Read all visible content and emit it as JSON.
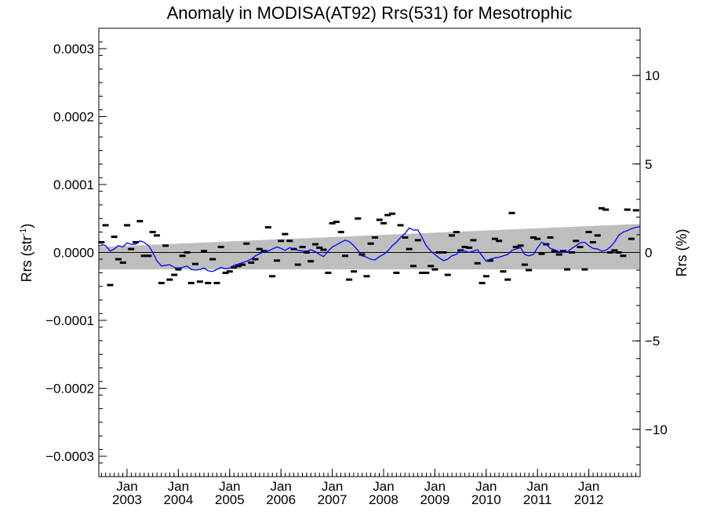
{
  "chart_data": {
    "type": "line",
    "title": "Anomaly in MODISA(AT92) Rrs(531) for Mesotrophic",
    "ylabel": "Rrs (str",
    "ylabel_sup": "-1",
    "ylabel_close": ")",
    "y2label": "Rrs (%)",
    "xlim": [
      2002.45,
      2013.0
    ],
    "ylim": [
      -0.00033,
      0.00033
    ],
    "y2lim": [
      -12.67,
      12.67
    ],
    "grid": false,
    "y_ticks": [
      {
        "value": 0.0003,
        "label": "0.0003"
      },
      {
        "value": 0.0002,
        "label": "0.0002"
      },
      {
        "value": 0.0001,
        "label": "0.0001"
      },
      {
        "value": 0.0,
        "label": "0.0000"
      },
      {
        "value": -0.0001,
        "label": "−0.0001"
      },
      {
        "value": -0.0002,
        "label": "−0.0002"
      },
      {
        "value": -0.0003,
        "label": "−0.0003"
      }
    ],
    "y2_ticks": [
      {
        "value": 10,
        "label": "10"
      },
      {
        "value": 5,
        "label": "5"
      },
      {
        "value": 0,
        "label": "0"
      },
      {
        "value": -5,
        "label": "−5"
      },
      {
        "value": -10,
        "label": "−10"
      }
    ],
    "x_ticks": [
      {
        "value": 2003.0,
        "month": "Jan",
        "year": "2003"
      },
      {
        "value": 2004.0,
        "month": "Jan",
        "year": "2004"
      },
      {
        "value": 2005.0,
        "month": "Jan",
        "year": "2005"
      },
      {
        "value": 2006.0,
        "month": "Jan",
        "year": "2006"
      },
      {
        "value": 2007.0,
        "month": "Jan",
        "year": "2007"
      },
      {
        "value": 2008.0,
        "month": "Jan",
        "year": "2008"
      },
      {
        "value": 2009.0,
        "month": "Jan",
        "year": "2009"
      },
      {
        "value": 2010.0,
        "month": "Jan",
        "year": "2010"
      },
      {
        "value": 2011.0,
        "month": "Jan",
        "year": "2011"
      },
      {
        "value": 2012.0,
        "month": "Jan",
        "year": "2012"
      }
    ],
    "reference_line": 0.0,
    "band": {
      "upper": [
        [
          2002.45,
          8e-06
        ],
        [
          2013.0,
          4.2e-05
        ]
      ],
      "lower": [
        [
          2002.45,
          -2.5e-05
        ],
        [
          2013.0,
          -2.5e-05
        ]
      ],
      "color": "#bebebe"
    },
    "series": [
      {
        "kind": "points",
        "color": "#000000",
        "x": [
          2002.5,
          2002.58,
          2002.67,
          2002.75,
          2002.83,
          2002.92,
          2003.0,
          2003.08,
          2003.17,
          2003.25,
          2003.33,
          2003.42,
          2003.5,
          2003.58,
          2003.67,
          2003.75,
          2003.83,
          2003.92,
          2004.0,
          2004.08,
          2004.17,
          2004.25,
          2004.33,
          2004.42,
          2004.5,
          2004.58,
          2004.67,
          2004.75,
          2004.83,
          2004.92,
          2005.0,
          2005.08,
          2005.17,
          2005.25,
          2005.33,
          2005.42,
          2005.5,
          2005.58,
          2005.67,
          2005.75,
          2005.83,
          2005.92,
          2006.0,
          2006.08,
          2006.17,
          2006.25,
          2006.33,
          2006.42,
          2006.5,
          2006.58,
          2006.67,
          2006.75,
          2006.83,
          2006.92,
          2007.0,
          2007.08,
          2007.17,
          2007.25,
          2007.33,
          2007.42,
          2007.5,
          2007.58,
          2007.67,
          2007.75,
          2007.83,
          2007.92,
          2008.0,
          2008.08,
          2008.17,
          2008.25,
          2008.33,
          2008.42,
          2008.5,
          2008.58,
          2008.67,
          2008.75,
          2008.83,
          2008.92,
          2009.0,
          2009.08,
          2009.17,
          2009.25,
          2009.33,
          2009.42,
          2009.5,
          2009.58,
          2009.67,
          2009.75,
          2009.83,
          2009.92,
          2010.0,
          2010.08,
          2010.17,
          2010.25,
          2010.33,
          2010.42,
          2010.5,
          2010.58,
          2010.67,
          2010.75,
          2010.83,
          2010.92,
          2011.0,
          2011.08,
          2011.17,
          2011.25,
          2011.33,
          2011.42,
          2011.5,
          2011.58,
          2011.67,
          2011.75,
          2011.83,
          2011.92,
          2012.0,
          2012.08,
          2012.17,
          2012.25,
          2012.33,
          2012.42,
          2012.5,
          2012.58,
          2012.67,
          2012.75,
          2012.83,
          2012.92
        ],
        "y": [
          1.5e-05,
          4e-05,
          -4.8e-05,
          2.3e-05,
          -1e-05,
          -1.5e-05,
          4e-05,
          5e-06,
          1.5e-05,
          4.6e-05,
          -5e-06,
          -5e-06,
          3e-05,
          2.5e-05,
          -4.5e-05,
          1e-05,
          -4e-05,
          -3.3e-05,
          -2.5e-05,
          -5e-06,
          0.0,
          -4.5e-05,
          -1.7e-05,
          -4.3e-05,
          2e-06,
          -4.5e-05,
          -1e-05,
          -4.5e-05,
          8e-06,
          -3e-05,
          -2.8e-05,
          -2.2e-05,
          -2e-05,
          -1.8e-05,
          1.3e-05,
          -1.5e-05,
          -1e-05,
          5e-06,
          2e-06,
          3.7e-05,
          -3.5e-05,
          -1.2e-05,
          1.7e-05,
          2.7e-05,
          1.7e-05,
          5e-06,
          -1.8e-05,
          8e-06,
          0.0,
          -1.3e-05,
          1.2e-05,
          7e-06,
          4e-06,
          -3e-05,
          4.3e-05,
          4.5e-05,
          3e-05,
          -5e-06,
          -4e-05,
          -2.8e-05,
          5e-05,
          -3e-06,
          -3.5e-05,
          1.3e-05,
          2.2e-05,
          4.8e-05,
          4.3e-05,
          5.5e-05,
          5.7e-05,
          -3e-05,
          4e-05,
          2.2e-05,
          5e-06,
          -2e-05,
          1.8e-05,
          -3e-05,
          -3e-05,
          -2e-05,
          -2.5e-05,
          0.0,
          0.0,
          -3.3e-05,
          2.5e-05,
          3e-05,
          3e-06,
          8e-06,
          7e-06,
          1.8e-05,
          -1.6e-05,
          -4.5e-05,
          -3.5e-05,
          -1.2e-05,
          2e-05,
          1.7e-05,
          -2.8e-05,
          -4e-05,
          5.8e-05,
          8e-06,
          1e-05,
          -1.8e-05,
          -2.6e-05,
          2.2e-05,
          2e-05,
          -2e-06,
          1.2e-05,
          2.2e-05,
          2e-06,
          -3e-06,
          2e-06,
          -2.5e-05,
          0.0,
          1.7e-05,
          8e-06,
          -2.5e-05,
          3e-05,
          1.5e-05,
          2.5e-05,
          6.5e-05,
          6.3e-05,
          0.0,
          3e-06,
          0.0,
          -5e-06,
          6.3e-05,
          2e-05,
          6.2e-05
        ]
      },
      {
        "kind": "line",
        "color": "#0000ff",
        "x": [
          2002.5,
          2002.58,
          2002.67,
          2002.75,
          2002.83,
          2002.92,
          2003.0,
          2003.08,
          2003.17,
          2003.25,
          2003.33,
          2003.42,
          2003.5,
          2003.58,
          2003.67,
          2003.75,
          2003.83,
          2003.92,
          2004.0,
          2004.08,
          2004.17,
          2004.25,
          2004.33,
          2004.42,
          2004.5,
          2004.58,
          2004.67,
          2004.75,
          2004.83,
          2004.92,
          2005.0,
          2005.08,
          2005.17,
          2005.25,
          2005.33,
          2005.42,
          2005.5,
          2005.58,
          2005.67,
          2005.75,
          2005.83,
          2005.92,
          2006.0,
          2006.08,
          2006.17,
          2006.25,
          2006.33,
          2006.42,
          2006.5,
          2006.58,
          2006.67,
          2006.75,
          2006.83,
          2006.92,
          2007.0,
          2007.08,
          2007.17,
          2007.25,
          2007.33,
          2007.42,
          2007.5,
          2007.58,
          2007.67,
          2007.75,
          2007.83,
          2007.92,
          2008.0,
          2008.08,
          2008.17,
          2008.25,
          2008.33,
          2008.42,
          2008.5,
          2008.58,
          2008.67,
          2008.75,
          2008.83,
          2008.92,
          2009.0,
          2009.08,
          2009.17,
          2009.25,
          2009.33,
          2009.42,
          2009.5,
          2009.58,
          2009.67,
          2009.75,
          2009.83,
          2009.92,
          2010.0,
          2010.08,
          2010.17,
          2010.25,
          2010.33,
          2010.42,
          2010.5,
          2010.58,
          2010.67,
          2010.75,
          2010.83,
          2010.92,
          2011.0,
          2011.08,
          2011.17,
          2011.25,
          2011.33,
          2011.42,
          2011.5,
          2011.58,
          2011.67,
          2011.75,
          2011.83,
          2011.92,
          2012.0,
          2012.08,
          2012.17,
          2012.25,
          2012.33,
          2012.42,
          2012.5,
          2012.58,
          2012.67,
          2012.75,
          2012.83,
          2012.92,
          2013.0
        ],
        "y": [
          1.2e-05,
          1e-05,
          2e-06,
          5e-06,
          1e-05,
          8e-06,
          1.4e-05,
          1.2e-05,
          1.2e-05,
          1.7e-05,
          1.5e-05,
          1e-05,
          0.0,
          -1.2e-05,
          -2e-05,
          -1.9e-05,
          -1.8e-05,
          -2.2e-05,
          -2.3e-05,
          -2.2e-05,
          -2e-05,
          -2.5e-05,
          -2.6e-05,
          -2.5e-05,
          -2.3e-05,
          -2.7e-05,
          -2.8e-05,
          -2.5e-05,
          -2.2e-05,
          -2.4e-05,
          -2.3e-05,
          -1.9e-05,
          -1.7e-05,
          -1.5e-05,
          -1.3e-05,
          -1e-05,
          -5e-06,
          -2e-06,
          1e-06,
          2e-06,
          5e-06,
          8e-06,
          6e-06,
          3e-06,
          7e-06,
          5e-06,
          3e-06,
          2e-06,
          2e-06,
          4e-06,
          1e-06,
          -3e-06,
          -6e-06,
          2e-06,
          8e-06,
          1.1e-05,
          1.5e-05,
          1.8e-05,
          1.6e-05,
          1e-05,
          3e-06,
          -5e-06,
          -7e-06,
          -1e-05,
          -1.1e-05,
          -6e-06,
          -3e-06,
          2e-06,
          1e-05,
          1.5e-05,
          2.2e-05,
          2.8e-05,
          3.6e-05,
          3.3e-05,
          3.3e-05,
          2.2e-05,
          1e-05,
          2e-06,
          -3e-06,
          -8e-06,
          -1.2e-05,
          -1e-05,
          -5e-06,
          -3e-06,
          3e-06,
          2e-06,
          0.0,
          2e-06,
          4e-06,
          -5e-06,
          -1.3e-05,
          -1e-05,
          -8e-06,
          -7e-06,
          -5e-06,
          -3e-06,
          3e-06,
          5e-06,
          7e-06,
          -3e-06,
          -5e-06,
          -3e-06,
          7e-06,
          1.5e-05,
          1.2e-05,
          6e-06,
          4e-06,
          1e-06,
          0.0,
          1e-06,
          6e-06,
          1e-05,
          1.4e-05,
          1.5e-05,
          1e-05,
          6e-06,
          5e-06,
          2e-06,
          3e-06,
          8e-06,
          1.5e-05,
          2.5e-05,
          3e-05,
          3.2e-05,
          3.5e-05,
          3.7e-05,
          3.8e-05
        ]
      }
    ]
  }
}
